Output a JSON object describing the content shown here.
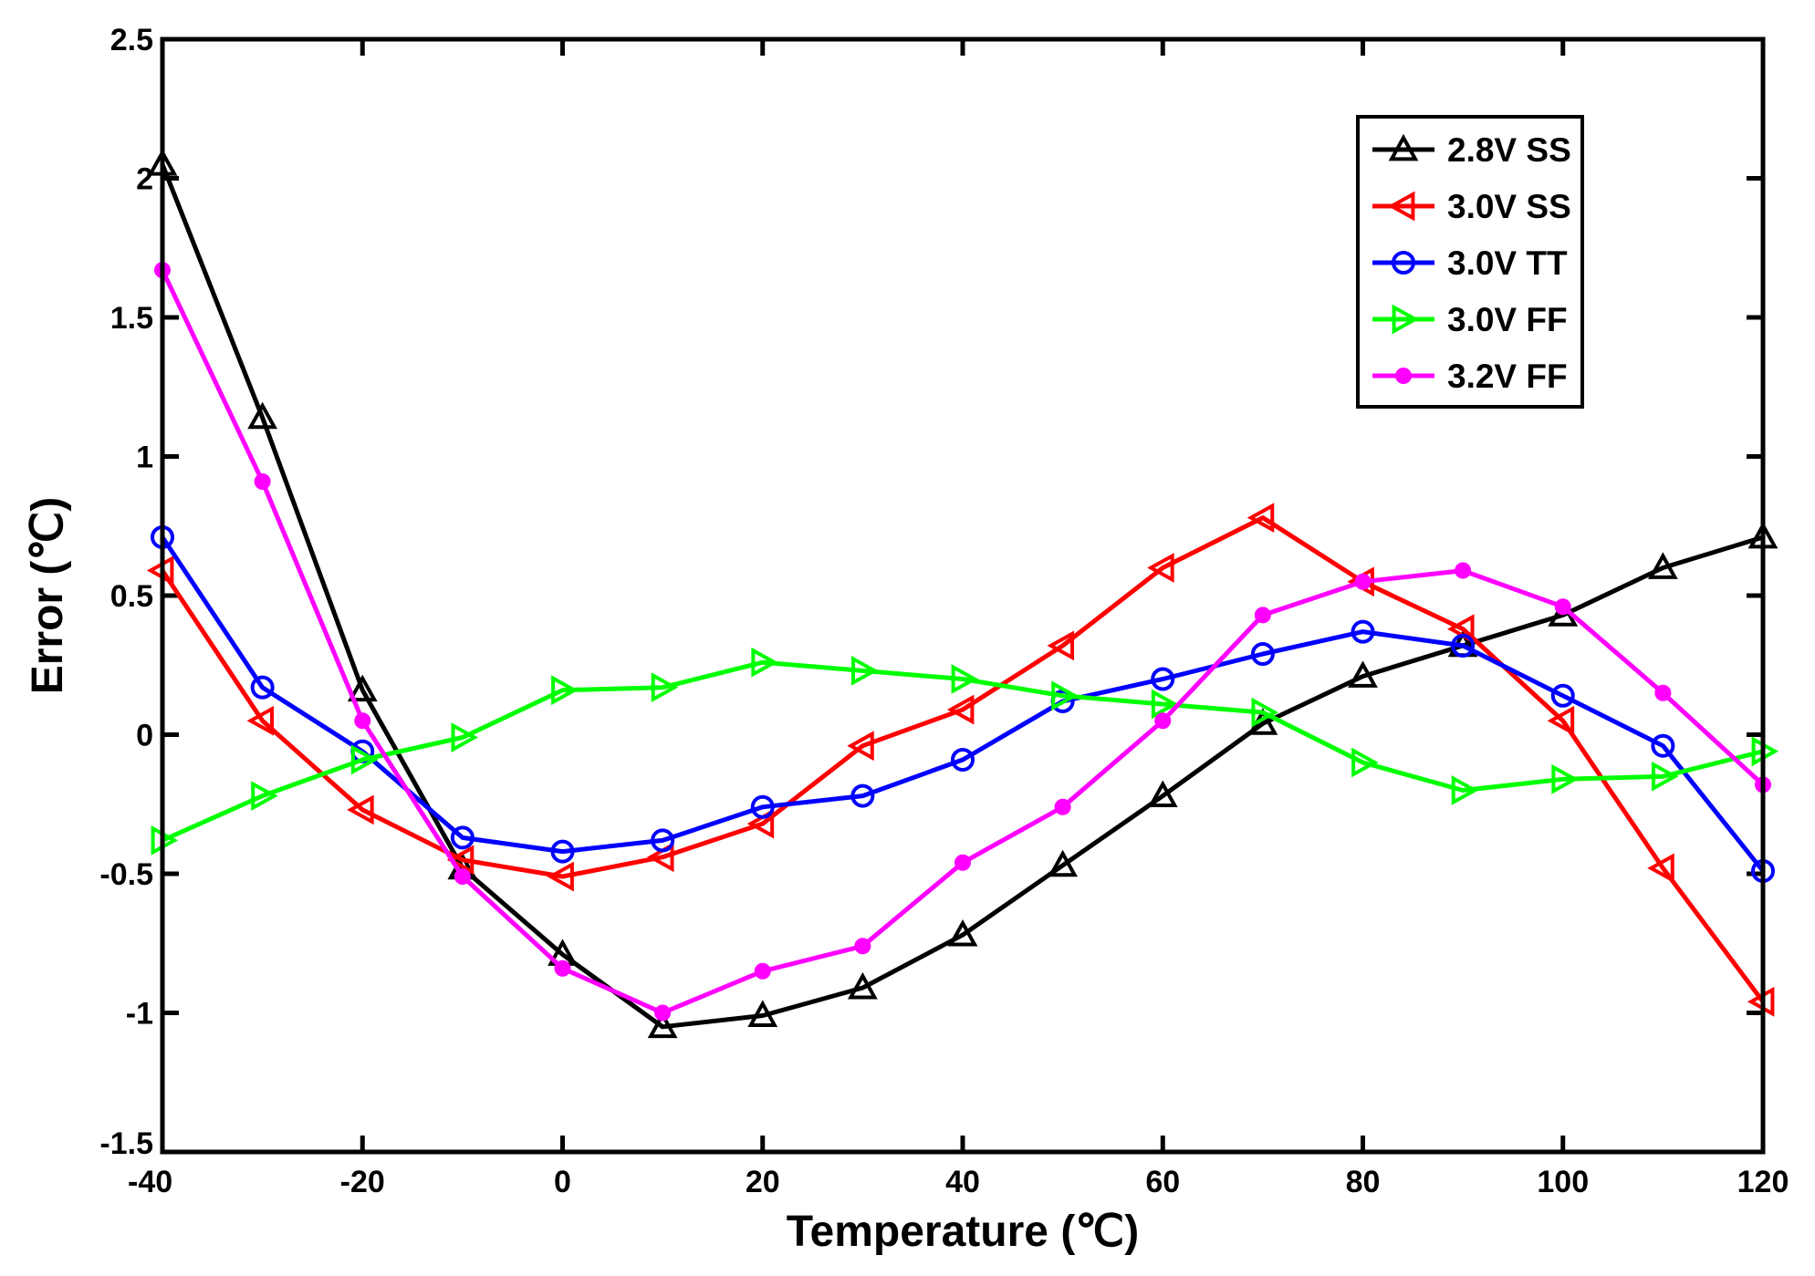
{
  "chart_data": {
    "type": "line",
    "title": "",
    "xlabel": "Temperature (℃)",
    "ylabel": "Error (℃)",
    "xlim": [
      -40,
      120
    ],
    "ylim": [
      -1.5,
      2.5
    ],
    "x_ticks": [
      -40,
      -20,
      0,
      20,
      40,
      60,
      80,
      100,
      120
    ],
    "y_ticks": [
      -1.5,
      -1,
      -0.5,
      0,
      0.5,
      1,
      1.5,
      2,
      2.5
    ],
    "x_tick_labels": [
      "-40",
      "-20",
      "0",
      "20",
      "40",
      "60",
      "80",
      "100",
      "120"
    ],
    "y_tick_labels": [
      "-1.5",
      "-1",
      "-0.5",
      "0",
      "0.5",
      "1",
      "1.5",
      "2",
      "2.5"
    ],
    "grid": false,
    "legend_position": "top-right",
    "x": [
      -40,
      -30,
      -20,
      -10,
      0,
      10,
      20,
      30,
      40,
      50,
      60,
      70,
      80,
      90,
      100,
      110,
      120
    ],
    "series": [
      {
        "name": "2.8V SS",
        "color": "#000000",
        "marker": "triangle-up",
        "values": [
          2.05,
          1.14,
          0.16,
          -0.48,
          -0.79,
          -1.05,
          -1.01,
          -0.91,
          -0.72,
          -0.47,
          -0.22,
          0.04,
          0.21,
          0.32,
          0.43,
          0.6,
          0.71
        ]
      },
      {
        "name": "3.0V SS",
        "color": "#ff0000",
        "marker": "triangle-left",
        "values": [
          0.59,
          0.05,
          -0.27,
          -0.45,
          -0.51,
          -0.44,
          -0.32,
          -0.04,
          0.09,
          0.32,
          0.6,
          0.78,
          0.55,
          0.38,
          0.05,
          -0.48,
          -0.96
        ]
      },
      {
        "name": "3.0V TT",
        "color": "#0000ff",
        "marker": "circle-open",
        "values": [
          0.71,
          0.17,
          -0.06,
          -0.37,
          -0.42,
          -0.38,
          -0.26,
          -0.22,
          -0.09,
          0.12,
          0.2,
          0.29,
          0.37,
          0.32,
          0.14,
          -0.04,
          -0.49
        ]
      },
      {
        "name": "3.0V FF",
        "color": "#00ff00",
        "marker": "triangle-right",
        "values": [
          -0.38,
          -0.22,
          -0.09,
          -0.01,
          0.16,
          0.17,
          0.26,
          0.23,
          0.2,
          0.14,
          0.11,
          0.08,
          -0.1,
          -0.2,
          -0.16,
          -0.15,
          -0.06
        ]
      },
      {
        "name": "3.2V FF",
        "color": "#ff00ff",
        "marker": "circle-filled",
        "values": [
          1.67,
          0.91,
          0.05,
          -0.51,
          -0.84,
          -1.0,
          -0.85,
          -0.76,
          -0.46,
          -0.26,
          0.05,
          0.43,
          0.55,
          0.59,
          0.46,
          0.15,
          -0.18
        ]
      }
    ]
  }
}
